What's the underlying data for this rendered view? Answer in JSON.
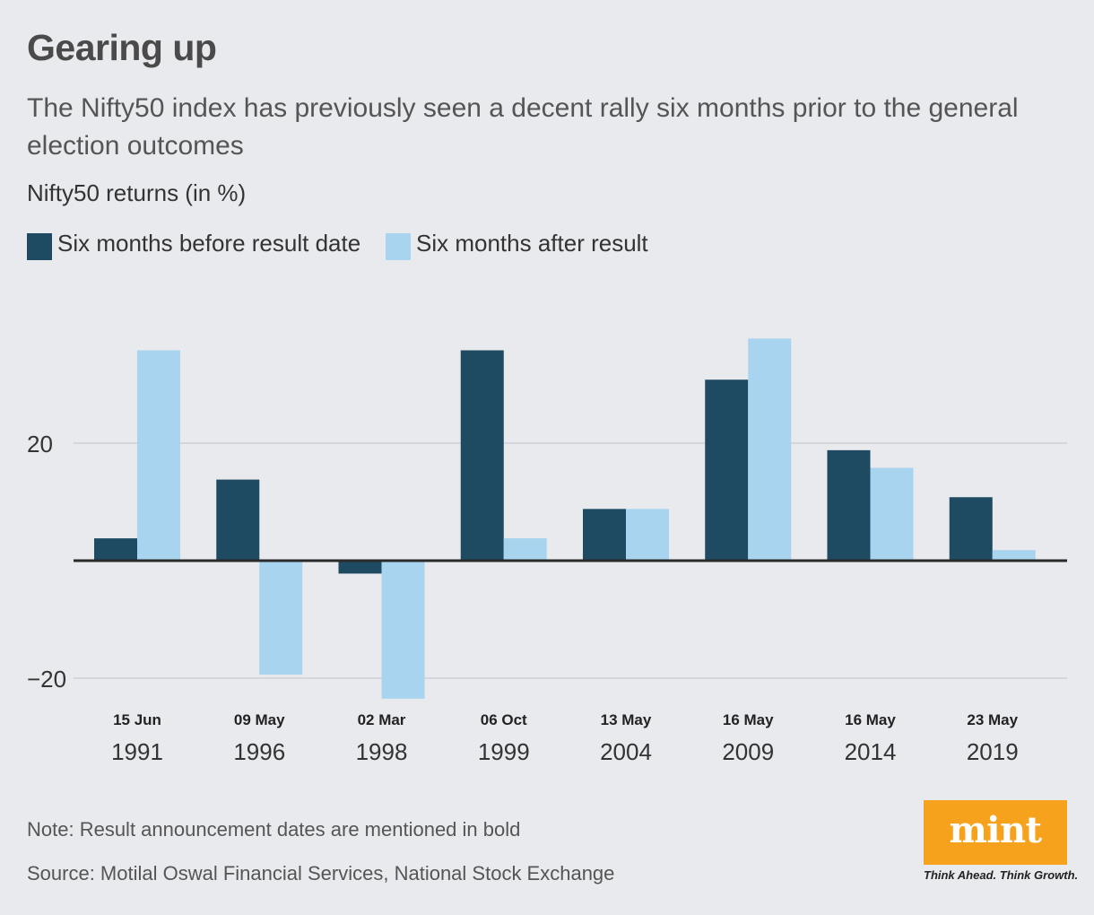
{
  "title": "Gearing up",
  "subtitle": "The Nifty50 index has previously seen a decent rally six months prior to the general election outcomes",
  "units_label": "Nifty50 returns (in %)",
  "legend": [
    {
      "label": "Six months before result date",
      "color": "#1e4a62"
    },
    {
      "label": "Six months after result",
      "color": "#a9d4ef"
    }
  ],
  "note": "Note: Result announcement dates are mentioned in bold",
  "source": "Source: Motilal Oswal Financial Services, National Stock Exchange",
  "logo": {
    "word": "mint",
    "tagline": "Think Ahead. Think Growth.",
    "color": "#f7a21c"
  },
  "chart_data": {
    "type": "bar",
    "categories": [
      {
        "date": "15 Jun",
        "year": "1991"
      },
      {
        "date": "09 May",
        "year": "1996"
      },
      {
        "date": "02 Mar",
        "year": "1998"
      },
      {
        "date": "06 Oct",
        "year": "1999"
      },
      {
        "date": "13 May",
        "year": "2004"
      },
      {
        "date": "16 May",
        "year": "2009"
      },
      {
        "date": "16 May",
        "year": "2014"
      },
      {
        "date": "23 May",
        "year": "2019"
      }
    ],
    "series": [
      {
        "name": "Six months before result date",
        "color": "#1e4a62",
        "values": [
          3.8,
          13.8,
          -2.2,
          35.8,
          8.8,
          30.8,
          18.8,
          10.8
        ]
      },
      {
        "name": "Six months after result",
        "color": "#a9d4ef",
        "values": [
          35.8,
          -19.4,
          -23.5,
          3.8,
          8.8,
          37.8,
          15.8,
          1.8
        ]
      }
    ],
    "yticks": [
      {
        "value": 20,
        "label": "20"
      },
      {
        "value": -20,
        "label": "−20"
      }
    ],
    "ylim": [
      -24,
      42
    ],
    "xlabel": "",
    "ylabel": "Nifty50 returns (in %)"
  }
}
